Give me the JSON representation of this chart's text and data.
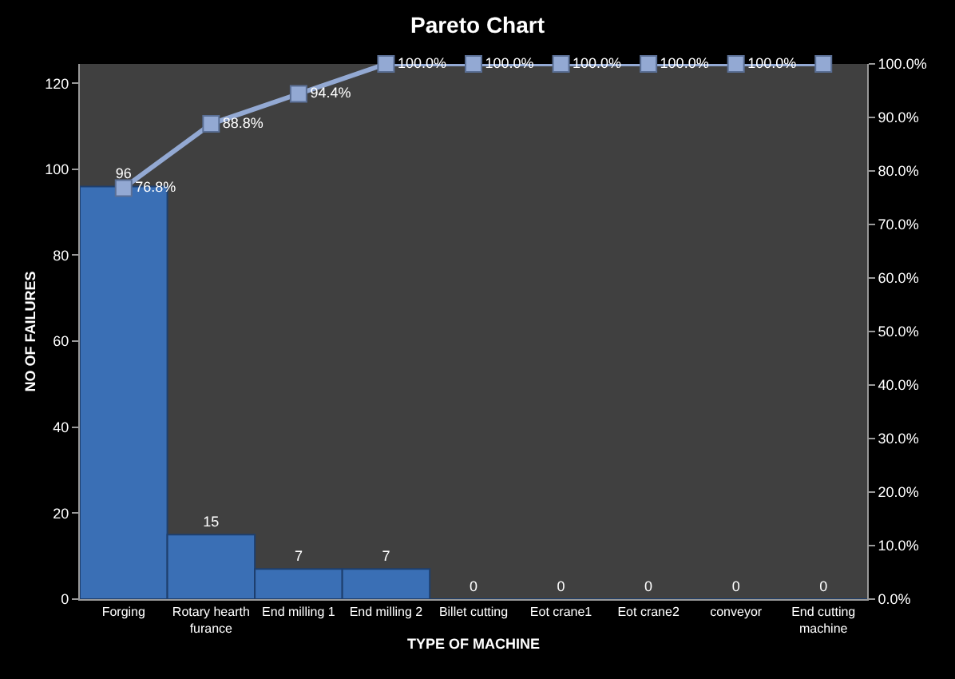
{
  "chart_data": {
    "type": "bar",
    "title": "Pareto Chart",
    "xlabel": "TYPE OF MACHINE",
    "ylabel": "NO OF FAILURES",
    "categories": [
      "Forging",
      "Rotary hearth furance",
      "End milling 1",
      "End milling 2",
      "Billet cutting",
      "Eot crane1",
      "Eot crane2",
      "conveyor",
      "End cutting machine"
    ],
    "series": [
      {
        "color": "#3a6fb5",
        "values": [
          96,
          15,
          7,
          7,
          0,
          0,
          0,
          0,
          0
        ]
      },
      {
        "type": "line",
        "axis": "y2",
        "color": "#93a9d3",
        "values": [
          76.8,
          88.8,
          94.4,
          100,
          100,
          100,
          100,
          100,
          100
        ],
        "value_labels": [
          "76.8%",
          "88.8%",
          "94.4%",
          "100.0%",
          "100.0%",
          "100.0%",
          "100.0%",
          "100.0%",
          null
        ]
      }
    ],
    "data_labels": true,
    "ylim": [
      0,
      124.5
    ],
    "yticks": [
      0,
      20,
      40,
      60,
      80,
      100,
      120
    ],
    "y2lim": [
      0,
      100
    ],
    "y2ticks": [
      {
        "value": 0,
        "label": "0.0%"
      },
      {
        "value": 10,
        "label": "10.0%"
      },
      {
        "value": 20,
        "label": "20.0%"
      },
      {
        "value": 30,
        "label": "30.0%"
      },
      {
        "value": 40,
        "label": "40.0%"
      },
      {
        "value": 50,
        "label": "50.0%"
      },
      {
        "value": 60,
        "label": "60.0%"
      },
      {
        "value": 70,
        "label": "70.0%"
      },
      {
        "value": 80,
        "label": "80.0%"
      },
      {
        "value": 90,
        "label": "90.0%"
      },
      {
        "value": 100,
        "label": "100.0%"
      }
    ],
    "marker": "square",
    "line_style": "solid"
  }
}
